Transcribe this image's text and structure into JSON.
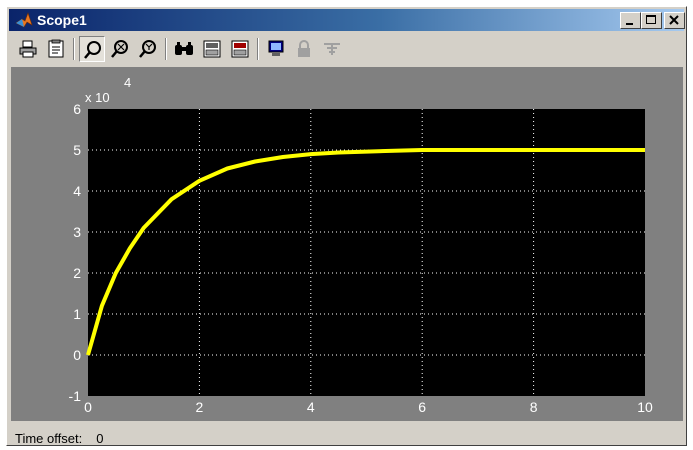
{
  "window": {
    "title": "Scope1",
    "controls": [
      "minimize",
      "maximize",
      "close"
    ]
  },
  "toolbar": {
    "buttons": [
      {
        "name": "print-icon"
      },
      {
        "name": "parameters-icon"
      },
      {
        "name": "zoom-icon",
        "pressed": true
      },
      {
        "name": "zoom-x-icon"
      },
      {
        "name": "zoom-y-icon"
      },
      {
        "name": "autoscale-icon"
      },
      {
        "name": "save-axes-icon"
      },
      {
        "name": "restore-axes-icon"
      },
      {
        "name": "floating-scope-icon"
      },
      {
        "name": "lock-icon",
        "disabled": true
      },
      {
        "name": "signal-selection-icon",
        "disabled": true
      }
    ]
  },
  "plot": {
    "exponent_base": "x 10",
    "exponent_power": "4",
    "x_ticks": [
      "0",
      "2",
      "4",
      "6",
      "8",
      "10"
    ],
    "y_ticks": [
      "-1",
      "0",
      "1",
      "2",
      "3",
      "4",
      "5",
      "6"
    ]
  },
  "status": {
    "label": "Time offset:",
    "value": "0"
  },
  "colors": {
    "title_gradient_start": "#0a246a",
    "title_gradient_end": "#a6caf0",
    "plot_background": "#000000",
    "canvas_background": "#808080",
    "signal": "#ffff00",
    "grid": "#ffffff",
    "tick_text": "#ffffff"
  },
  "chart_data": {
    "type": "line",
    "x_range": [
      0,
      10
    ],
    "y_range": [
      -1,
      6
    ],
    "y_scale_factor": "x 10^4",
    "grid": true,
    "series": [
      {
        "color": "#ffff00",
        "x": [
          0,
          0.25,
          0.5,
          0.75,
          1,
          1.5,
          2,
          2.5,
          3,
          3.5,
          4,
          4.5,
          5,
          5.5,
          6,
          7,
          8,
          9,
          10
        ],
        "y": [
          0,
          1.2,
          2.0,
          2.6,
          3.1,
          3.8,
          4.25,
          4.55,
          4.72,
          4.83,
          4.9,
          4.94,
          4.96,
          4.98,
          5.0,
          5.0,
          5.0,
          5.0,
          5.0
        ]
      }
    ]
  }
}
